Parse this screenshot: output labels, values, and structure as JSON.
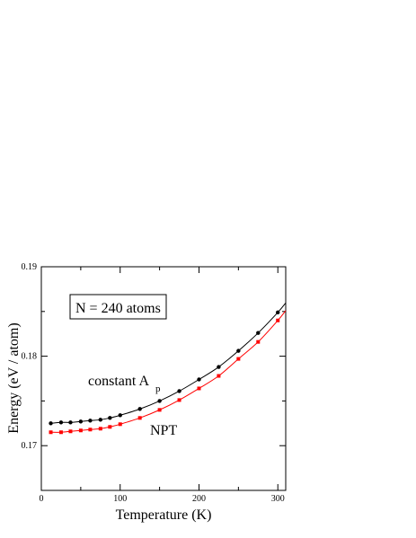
{
  "chart_data": {
    "type": "line",
    "xlabel": "Temperature  (K)",
    "ylabel": "Energy  (eV / atom)",
    "xlim": [
      0,
      310
    ],
    "ylim": [
      0.165,
      0.19
    ],
    "xticks": [
      0,
      100,
      200,
      300
    ],
    "xtick_labels": [
      "0",
      "100",
      "200",
      "300"
    ],
    "yticks": [
      0.17,
      0.18,
      0.19
    ],
    "ytick_labels": [
      "0.17",
      "0.18",
      "0.19"
    ],
    "grid": false,
    "annotations": {
      "box_text": "N = 240 atoms",
      "constant_label": "constant  A",
      "constant_sub": "p",
      "npt_label": "NPT"
    },
    "series": [
      {
        "color": "#000000",
        "marker": "circle",
        "x": [
          12,
          25,
          37,
          50,
          62,
          75,
          87,
          100,
          125,
          150,
          175,
          200,
          225,
          250,
          275,
          300
        ],
        "y": [
          0.1725,
          0.1726,
          0.1726,
          0.1727,
          0.1728,
          0.1729,
          0.1731,
          0.1734,
          0.1741,
          0.175,
          0.1761,
          0.1774,
          0.1788,
          0.1806,
          0.1826,
          0.1849
        ]
      },
      {
        "color": "#ff0000",
        "marker": "square",
        "x": [
          12,
          25,
          37,
          50,
          62,
          75,
          87,
          100,
          125,
          150,
          175,
          200,
          225,
          250,
          275,
          300
        ],
        "y": [
          0.1715,
          0.1715,
          0.1716,
          0.1717,
          0.1718,
          0.1719,
          0.1721,
          0.1724,
          0.1731,
          0.174,
          0.1751,
          0.1764,
          0.1778,
          0.1797,
          0.1816,
          0.184
        ]
      }
    ]
  }
}
